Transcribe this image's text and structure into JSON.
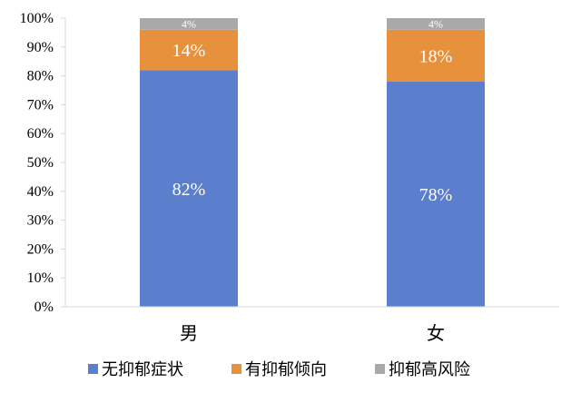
{
  "chart_data": {
    "type": "bar",
    "stacked": true,
    "categories": [
      "男",
      "女"
    ],
    "series": [
      {
        "name": "无抑郁症状",
        "values": [
          82,
          78
        ],
        "color": "#5B7FCC"
      },
      {
        "name": "有抑郁倾向",
        "values": [
          14,
          18
        ],
        "color": "#E8913D"
      },
      {
        "name": "抑郁高风险",
        "values": [
          4,
          4
        ],
        "color": "#A9A9A9"
      }
    ],
    "data_labels": [
      [
        "82%",
        "78%"
      ],
      [
        "14%",
        "18%"
      ],
      [
        "4%",
        "4%"
      ]
    ],
    "y_ticks": [
      "0%",
      "10%",
      "20%",
      "30%",
      "40%",
      "50%",
      "60%",
      "70%",
      "80%",
      "90%",
      "100%"
    ],
    "ylim": [
      0,
      100
    ],
    "grid": false,
    "legend_position": "bottom",
    "title": "",
    "xlabel": "",
    "ylabel": ""
  }
}
